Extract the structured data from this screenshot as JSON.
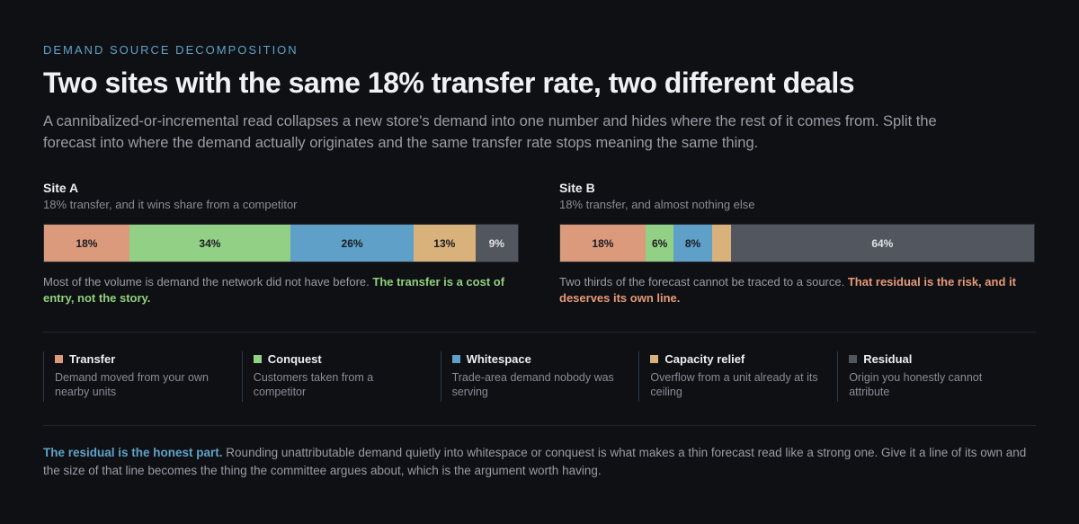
{
  "header": {
    "eyebrow": "DEMAND SOURCE DECOMPOSITION",
    "title": "Two sites with the same 18% transfer rate, two different deals",
    "lede": "A cannibalized-or-incremental read collapses a new store's demand into one number and hides where the rest of it comes from. Split the forecast into where the demand actually originates and the same transfer rate stops meaning the same thing."
  },
  "colors": {
    "transfer": "#dc9a7c",
    "conquest": "#92d085",
    "whitespace": "#5ea0c8",
    "capacity": "#d8b27a",
    "residual": "#52565e",
    "accent_blue": "#5fa2c8"
  },
  "chart_data": {
    "type": "bar",
    "orientation": "horizontal-stacked",
    "categories": [
      "Transfer",
      "Conquest",
      "Whitespace",
      "Capacity relief",
      "Residual"
    ],
    "series": [
      {
        "name": "Site A",
        "values": [
          18,
          34,
          26,
          13,
          9
        ],
        "labels": [
          "18%",
          "34%",
          "26%",
          "13%",
          "9%"
        ]
      },
      {
        "name": "Site B",
        "values": [
          18,
          6,
          8,
          4,
          64
        ],
        "labels": [
          "18%",
          "6%",
          "8%",
          "",
          "64%"
        ]
      }
    ],
    "unit": "%"
  },
  "sites": [
    {
      "name": "Site A",
      "subtitle": "18% transfer, and it wins share from a competitor",
      "note_plain": "Most of the volume is demand the network did not have before. ",
      "note_emphasis": "The transfer is a cost of entry, not the story."
    },
    {
      "name": "Site B",
      "subtitle": "18% transfer, and almost nothing else",
      "note_plain": "Two thirds of the forecast cannot be traced to a source. ",
      "note_emphasis": "That residual is the risk, and it deserves its own line."
    }
  ],
  "legend": [
    {
      "label": "Transfer",
      "desc": "Demand moved from your own nearby units",
      "color": "#dc9a7c"
    },
    {
      "label": "Conquest",
      "desc": "Customers taken from a competitor",
      "color": "#92d085"
    },
    {
      "label": "Whitespace",
      "desc": "Trade-area demand nobody was serving",
      "color": "#5ea0c8"
    },
    {
      "label": "Capacity relief",
      "desc": "Overflow from a unit already at its ceiling",
      "color": "#d8b27a"
    },
    {
      "label": "Residual",
      "desc": "Origin you honestly cannot attribute",
      "color": "#52565e"
    }
  ],
  "footer": {
    "lead": "The residual is the honest part.",
    "body": " Rounding unattributable demand quietly into whitespace or conquest is what makes a thin forecast read like a strong one. Give it a line of its own and the size of that line becomes the thing the committee argues about, which is the argument worth having."
  }
}
